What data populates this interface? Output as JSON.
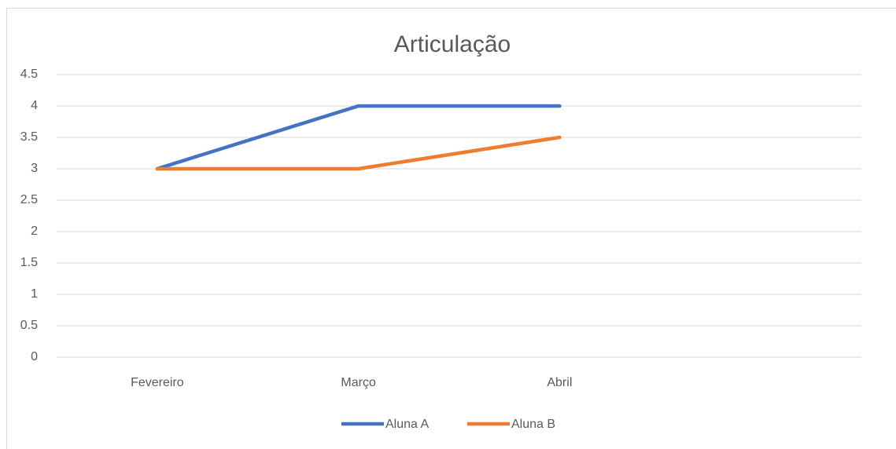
{
  "chart_data": {
    "type": "line",
    "title": "Articulação",
    "categories": [
      "Fevereiro",
      "Março",
      "Abril",
      null
    ],
    "series": [
      {
        "name": "Aluna A",
        "color": "#4472c4",
        "values": [
          3,
          4,
          4,
          null
        ]
      },
      {
        "name": "Aluna B",
        "color": "#ed7d31",
        "values": [
          3,
          3,
          3.5,
          null
        ]
      }
    ],
    "ylim": [
      0,
      4.5
    ],
    "yticks": [
      0,
      0.5,
      1,
      1.5,
      2,
      2.5,
      3,
      3.5,
      4,
      4.5
    ],
    "grid": true,
    "legend": "bottom"
  }
}
